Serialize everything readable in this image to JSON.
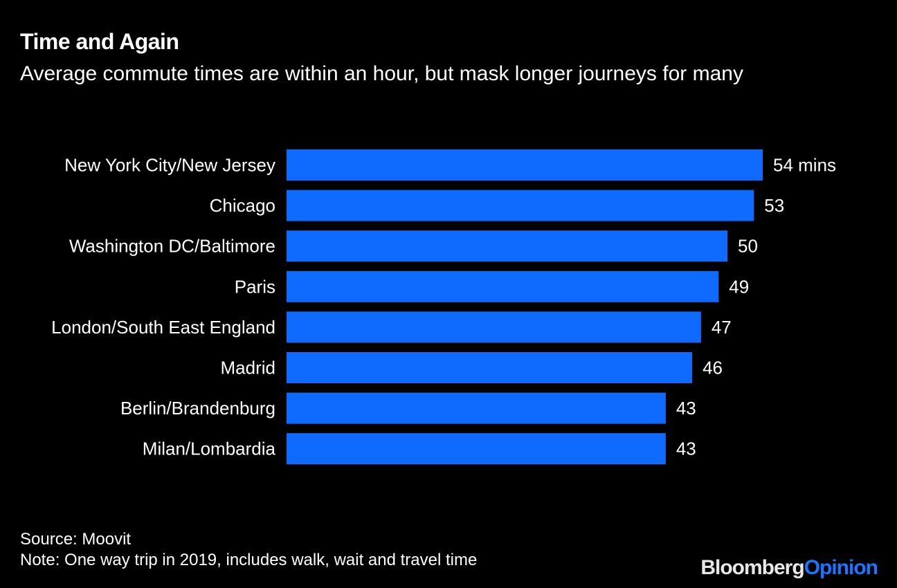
{
  "chart_data": {
    "type": "bar",
    "orientation": "horizontal",
    "title": "Time and Again",
    "subtitle": "Average commute times are within an hour, but mask longer journeys for many",
    "categories": [
      "New York City/New Jersey",
      "Chicago",
      "Washington DC/Baltimore",
      "Paris",
      "London/South East England",
      "Madrid",
      "Berlin/Brandenburg",
      "Milan/Lombardia"
    ],
    "values": [
      54,
      53,
      50,
      49,
      47,
      46,
      43,
      43
    ],
    "value_labels": [
      "54 mins",
      "53",
      "50",
      "49",
      "47",
      "46",
      "43",
      "43"
    ],
    "bar_color": "#0f6bff",
    "xlim": [
      0,
      54
    ],
    "grid": false,
    "legend": "none"
  },
  "footer": {
    "source": "Source: Moovit",
    "note": "Note: One way trip in 2019, includes walk, wait and travel time"
  },
  "brand": {
    "part1": "Bloomberg",
    "part2": "Opinion",
    "color1": "#e8e8e8",
    "color2": "#1a75ff"
  }
}
